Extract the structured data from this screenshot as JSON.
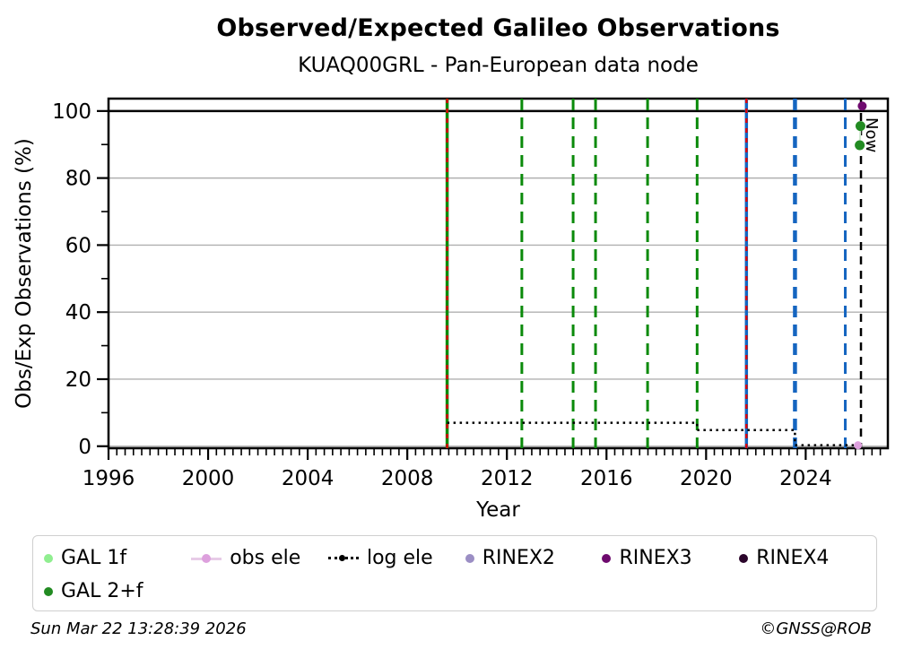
{
  "title": "Observed/Expected Galileo Observations",
  "subtitle": "KUAQ00GRL - Pan-European data node",
  "footer": {
    "timestamp": "Sun Mar 22 13:28:39 2026",
    "copyright": "©GNSS@ROB"
  },
  "chart_data": {
    "type": "line",
    "title": "Observed/Expected Galileo Observations",
    "subtitle": "KUAQ00GRL - Pan-European data node",
    "xlabel": "Year",
    "ylabel": "Obs/Exp Observations (%)",
    "xlim": [
      1996,
      2027.3
    ],
    "ylim": [
      -0.6,
      103.7
    ],
    "x_major_ticks": [
      1996,
      2000,
      2004,
      2008,
      2012,
      2016,
      2020,
      2024
    ],
    "x_tick_labels": [
      "1996",
      "2000",
      "2004",
      "2008",
      "2012",
      "2016",
      "2020",
      "2024"
    ],
    "x_minor_step_years": 0.3333,
    "y_major_ticks": [
      0,
      20,
      40,
      60,
      80,
      100
    ],
    "y_tick_labels": [
      "0",
      "20",
      "40",
      "60",
      "80",
      "100"
    ],
    "y_minor_ticks": [
      10,
      30,
      50,
      70,
      90
    ],
    "grid_y_values": [
      0,
      20,
      40,
      60,
      80
    ],
    "grid_color": "#b0b0b0",
    "hline_100": {
      "y": 100,
      "color": "#000000"
    },
    "now_line": {
      "year": 2026.22,
      "label": "Now",
      "color": "#000000"
    },
    "event_lines": [
      {
        "year": 2009.6,
        "color": "#0a8a0a",
        "style": "solid",
        "width": 3.5,
        "overlay_color": "#e00000"
      },
      {
        "year": 2012.6,
        "color": "#0a8a0a",
        "style": "dashed",
        "width": 3
      },
      {
        "year": 2014.66,
        "color": "#0a8a0a",
        "style": "dashed",
        "width": 3
      },
      {
        "year": 2015.56,
        "color": "#0a8a0a",
        "style": "dashed",
        "width": 3
      },
      {
        "year": 2017.65,
        "color": "#0a8a0a",
        "style": "dashed",
        "width": 3
      },
      {
        "year": 2019.64,
        "color": "#0a8a0a",
        "style": "dashed",
        "width": 3
      },
      {
        "year": 2021.62,
        "color": "#1565c0",
        "style": "solid",
        "width": 3.5,
        "overlay_color": "#e00000"
      },
      {
        "year": 2023.57,
        "color": "#1565c0",
        "style": "dashed",
        "width": 4.5
      },
      {
        "year": 2025.59,
        "color": "#1565c0",
        "style": "dashed",
        "width": 3
      }
    ],
    "series": [
      {
        "name": "log ele",
        "type": "step",
        "color": "#000000",
        "dash": "dotted",
        "points": [
          [
            2009.6,
            7.0
          ],
          [
            2019.64,
            7.0
          ],
          [
            2019.64,
            4.8
          ],
          [
            2023.57,
            4.8
          ],
          [
            2023.57,
            0.3
          ],
          [
            2025.97,
            0.3
          ]
        ]
      },
      {
        "name": "obs ele",
        "type": "scatter",
        "color": "#DDA0DD",
        "radius": 4.5,
        "points": [
          [
            2026.1,
            0.3
          ]
        ]
      },
      {
        "name": "GAL 2+f",
        "type": "scatter-line",
        "color": "#228B22",
        "line_color": "#cfe8cf",
        "radius": 5.5,
        "points": [
          [
            2026.17,
            89.8
          ],
          [
            2026.2,
            95.5
          ]
        ]
      },
      {
        "name": "RINEX3",
        "type": "scatter",
        "color": "#6e0a6e",
        "radius": 5,
        "points": [
          [
            2026.27,
            101.5
          ]
        ]
      }
    ]
  },
  "legend": {
    "items": [
      {
        "label": "GAL 1f",
        "marker": "dot",
        "color": "#90EE90",
        "row": 1
      },
      {
        "label": "obs ele",
        "marker": "line-dot",
        "color": "#DDA0DD",
        "line_color": "#e7cbe7",
        "row": 1
      },
      {
        "label": "log ele",
        "marker": "dotted-line",
        "color": "#000000",
        "row": 1
      },
      {
        "label": "RINEX2",
        "marker": "dot",
        "color": "#9b8ec4",
        "row": 1
      },
      {
        "label": "RINEX3",
        "marker": "dot",
        "color": "#6e0a6e",
        "row": 1
      },
      {
        "label": "RINEX4",
        "marker": "dot",
        "color": "#2b052b",
        "row": 1
      },
      {
        "label": "GAL 2+f",
        "marker": "dot",
        "color": "#228B22",
        "row": 2
      }
    ]
  }
}
